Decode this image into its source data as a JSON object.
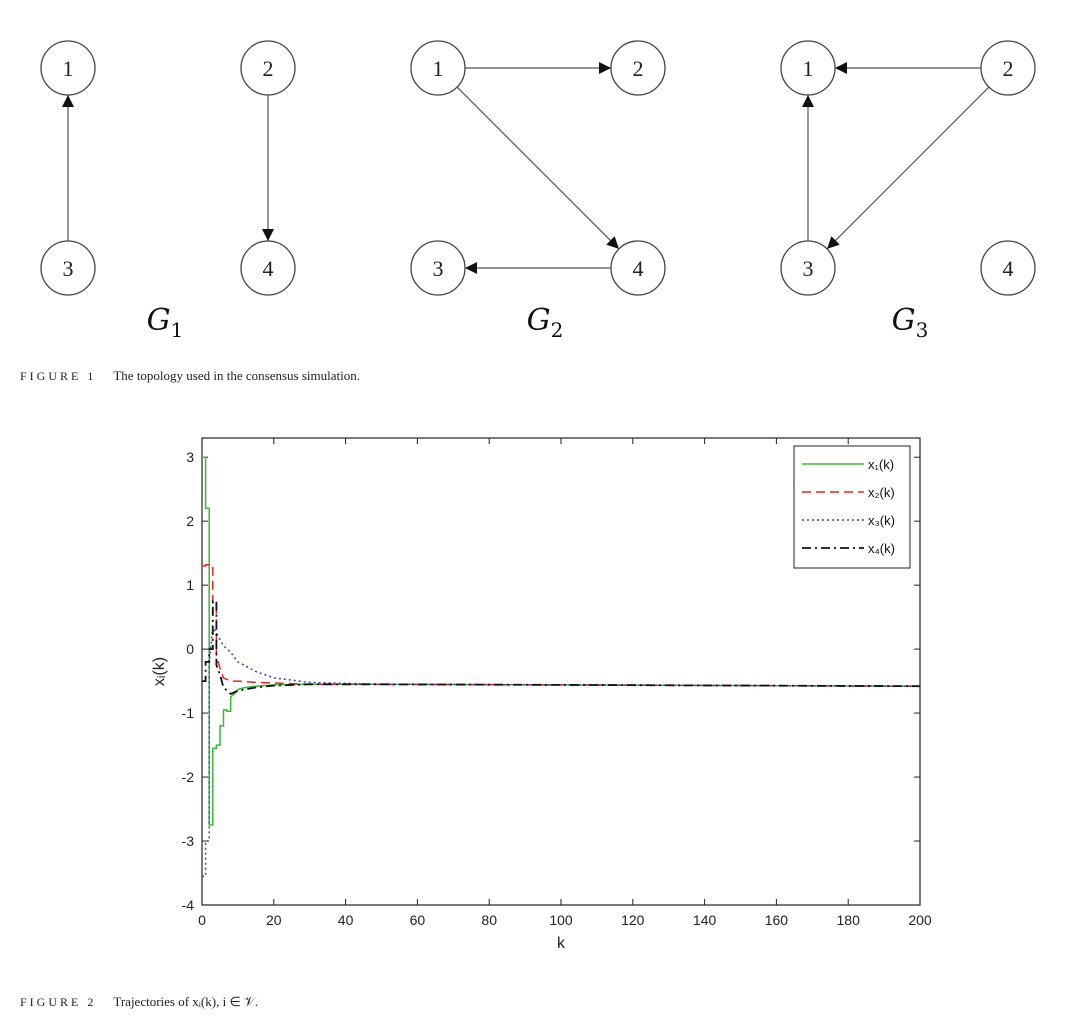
{
  "figure1": {
    "graphs": [
      {
        "label": "G1",
        "nodes": [
          {
            "id": "1",
            "label": "1"
          },
          {
            "id": "2",
            "label": "2"
          },
          {
            "id": "3",
            "label": "3"
          },
          {
            "id": "4",
            "label": "4"
          }
        ],
        "edges": [
          {
            "from": "3",
            "to": "1"
          },
          {
            "from": "2",
            "to": "4"
          }
        ]
      },
      {
        "label": "G2",
        "nodes": [
          {
            "id": "1",
            "label": "1"
          },
          {
            "id": "2",
            "label": "2"
          },
          {
            "id": "3",
            "label": "3"
          },
          {
            "id": "4",
            "label": "4"
          }
        ],
        "edges": [
          {
            "from": "1",
            "to": "2"
          },
          {
            "from": "1",
            "to": "4"
          },
          {
            "from": "4",
            "to": "3"
          }
        ]
      },
      {
        "label": "G3",
        "nodes": [
          {
            "id": "1",
            "label": "1"
          },
          {
            "id": "2",
            "label": "2"
          },
          {
            "id": "3",
            "label": "3"
          },
          {
            "id": "4",
            "label": "4"
          }
        ],
        "edges": [
          {
            "from": "2",
            "to": "1"
          },
          {
            "from": "3",
            "to": "1"
          },
          {
            "from": "2",
            "to": "3"
          }
        ]
      }
    ],
    "caption_label": "FIGURE 1",
    "caption_text": "The topology used in the consensus simulation."
  },
  "figure2": {
    "caption_label": "FIGURE 2",
    "caption_text": "Trajectories of xᵢ(k), i ∈ 𝒱."
  },
  "chart_data": {
    "type": "line",
    "title": "",
    "xlabel": "k",
    "ylabel": "xᵢ(k)",
    "xlim": [
      0,
      200
    ],
    "ylim": [
      -4,
      3.3
    ],
    "xticks": [
      0,
      20,
      40,
      60,
      80,
      100,
      120,
      140,
      160,
      180,
      200
    ],
    "yticks": [
      -4,
      -3,
      -2,
      -1,
      0,
      1,
      2,
      3
    ],
    "legend_position": "top-right",
    "grid": false,
    "series": [
      {
        "name": "x₁(k)",
        "color": "#33bb33",
        "dash": "solid",
        "x": [
          0,
          1,
          1,
          2,
          2,
          3,
          3,
          4,
          4,
          5,
          5,
          6,
          6,
          7,
          7,
          8,
          8,
          9,
          10,
          12,
          15,
          20,
          30,
          50,
          100,
          200
        ],
        "y": [
          3.0,
          3.0,
          2.2,
          2.2,
          -2.75,
          -2.75,
          -1.55,
          -1.55,
          -1.5,
          -1.5,
          -1.2,
          -1.2,
          -0.95,
          -0.95,
          -0.97,
          -0.97,
          -0.75,
          -0.7,
          -0.63,
          -0.6,
          -0.58,
          -0.56,
          -0.55,
          -0.55,
          -0.56,
          -0.58
        ]
      },
      {
        "name": "x₂(k)",
        "color": "#ee2222",
        "dash": "dashed",
        "x": [
          0,
          1,
          1,
          3,
          3,
          4,
          4,
          5,
          6,
          8,
          10,
          15,
          20,
          30,
          50,
          100,
          200
        ],
        "y": [
          1.3,
          1.3,
          1.32,
          1.32,
          0.7,
          0.7,
          -0.1,
          -0.3,
          -0.45,
          -0.5,
          -0.5,
          -0.52,
          -0.53,
          -0.55,
          -0.55,
          -0.56,
          -0.58
        ]
      },
      {
        "name": "x₃(k)",
        "color": "#3344cc",
        "dash": "dotted",
        "x": [
          0,
          1,
          1,
          2,
          2,
          3,
          4,
          5,
          6,
          8,
          10,
          15,
          20,
          30,
          50,
          100,
          200
        ],
        "y": [
          -3.55,
          -3.55,
          -3.0,
          -3.0,
          -0.2,
          0.35,
          0.25,
          0.15,
          0.05,
          -0.05,
          -0.2,
          -0.35,
          -0.45,
          -0.52,
          -0.55,
          -0.56,
          -0.58
        ]
      },
      {
        "name": "x₄(k)",
        "color": "#111111",
        "dash": "dashdot",
        "x": [
          0,
          1,
          1,
          2,
          2,
          3,
          3,
          4,
          4,
          5,
          6,
          8,
          10,
          15,
          20,
          30,
          50,
          100,
          200
        ],
        "y": [
          -0.5,
          -0.5,
          -0.2,
          -0.2,
          0.0,
          0.0,
          0.75,
          0.75,
          -0.25,
          -0.4,
          -0.6,
          -0.7,
          -0.65,
          -0.6,
          -0.57,
          -0.55,
          -0.55,
          -0.56,
          -0.58
        ]
      }
    ]
  }
}
